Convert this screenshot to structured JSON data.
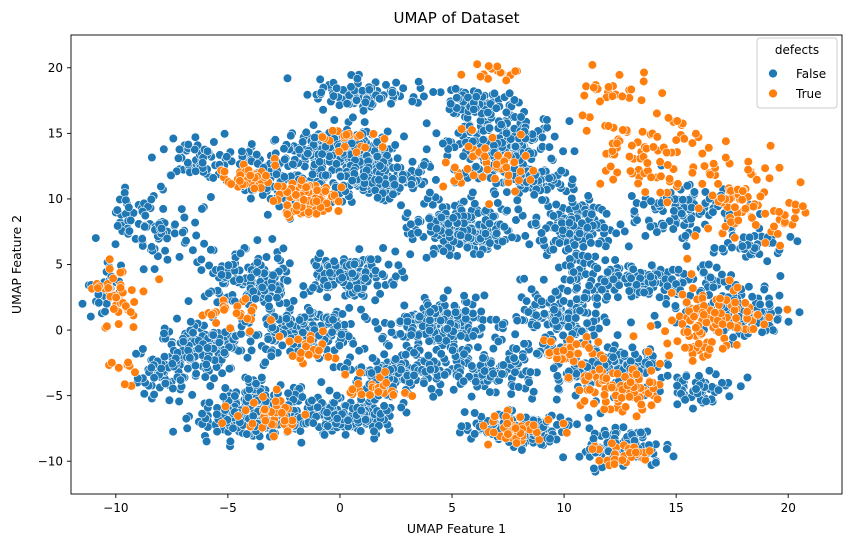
{
  "chart_data": {
    "type": "scatter",
    "title": "UMAP of Dataset",
    "xlabel": "UMAP Feature 1",
    "ylabel": "UMAP Feature 2",
    "xlim": [
      -12.0,
      22.4
    ],
    "ylim": [
      -12.5,
      22.5
    ],
    "xticks": [
      -10,
      -5,
      0,
      5,
      10,
      15,
      20
    ],
    "yticks": [
      -10,
      -5,
      0,
      5,
      10,
      15,
      20
    ],
    "grid": false,
    "legend": {
      "title": "defects",
      "placement": "top-right",
      "entries": [
        {
          "label": "False",
          "color": "#1f77b4"
        },
        {
          "label": "True",
          "color": "#ff7f0e"
        }
      ]
    },
    "series": [
      {
        "name": "False",
        "color": "#1f77b4",
        "clusters": [
          {
            "cx": 0.0,
            "cy": 13.8,
            "rx": 2.0,
            "ry": 1.3,
            "n": 220
          },
          {
            "cx": 7.2,
            "cy": 14.3,
            "rx": 2.0,
            "ry": 2.2,
            "n": 220
          },
          {
            "cx": 5.5,
            "cy": 7.8,
            "rx": 2.4,
            "ry": 1.8,
            "n": 240
          },
          {
            "cx": 0.5,
            "cy": 4.2,
            "rx": 1.7,
            "ry": 1.4,
            "n": 170
          },
          {
            "cx": -3.8,
            "cy": -6.2,
            "rx": 2.0,
            "ry": 1.8,
            "n": 260
          },
          {
            "cx": 0.3,
            "cy": -6.5,
            "rx": 1.8,
            "ry": 1.3,
            "n": 160
          },
          {
            "cx": 7.8,
            "cy": -7.5,
            "rx": 2.0,
            "ry": 1.2,
            "n": 160
          },
          {
            "cx": -1.5,
            "cy": 0.0,
            "rx": 2.3,
            "ry": 1.5,
            "n": 190
          },
          {
            "cx": 4.5,
            "cy": 0.5,
            "rx": 2.2,
            "ry": 1.8,
            "n": 200
          },
          {
            "cx": 10.5,
            "cy": 7.8,
            "rx": 1.4,
            "ry": 2.5,
            "n": 150
          },
          {
            "cx": 13.5,
            "cy": 3.8,
            "rx": 3.2,
            "ry": 1.3,
            "n": 170
          },
          {
            "cx": 17.5,
            "cy": 1.5,
            "rx": 2.2,
            "ry": 1.6,
            "n": 140
          },
          {
            "cx": -6.0,
            "cy": -1.5,
            "rx": 2.2,
            "ry": 2.0,
            "n": 150
          },
          {
            "cx": -4.0,
            "cy": 4.0,
            "rx": 1.8,
            "ry": 2.2,
            "n": 150
          },
          {
            "cx": 2.5,
            "cy": -3.5,
            "rx": 2.0,
            "ry": 1.5,
            "n": 150
          },
          {
            "cx": 12.0,
            "cy": -3.0,
            "rx": 2.5,
            "ry": 1.8,
            "n": 160
          },
          {
            "cx": 2.0,
            "cy": 11.5,
            "rx": 2.2,
            "ry": 1.3,
            "n": 150
          },
          {
            "cx": -2.5,
            "cy": 11.8,
            "rx": 2.3,
            "ry": 2.5,
            "n": 140
          },
          {
            "cx": 1.0,
            "cy": 18.0,
            "rx": 2.4,
            "ry": 1.2,
            "n": 90
          },
          {
            "cx": 10.0,
            "cy": 1.0,
            "rx": 2.0,
            "ry": 2.2,
            "n": 140
          },
          {
            "cx": 15.5,
            "cy": 9.0,
            "rx": 2.5,
            "ry": 2.0,
            "n": 110
          },
          {
            "cx": 12.5,
            "cy": -9.0,
            "rx": 1.8,
            "ry": 1.2,
            "n": 100
          },
          {
            "cx": -8.5,
            "cy": 8.0,
            "rx": 1.6,
            "ry": 2.5,
            "n": 90
          },
          {
            "cx": -8.0,
            "cy": -3.5,
            "rx": 1.2,
            "ry": 1.5,
            "n": 50
          },
          {
            "cx": -10.5,
            "cy": 3.0,
            "rx": 0.8,
            "ry": 1.5,
            "n": 30
          },
          {
            "cx": 6.5,
            "cy": -3.0,
            "rx": 2.0,
            "ry": 1.5,
            "n": 120
          },
          {
            "cx": 18.5,
            "cy": 6.5,
            "rx": 1.5,
            "ry": 0.8,
            "n": 40
          },
          {
            "cx": 16.0,
            "cy": -4.5,
            "rx": 1.5,
            "ry": 1.0,
            "n": 50
          },
          {
            "cx": 6.0,
            "cy": 17.5,
            "rx": 1.5,
            "ry": 1.0,
            "n": 60
          },
          {
            "cx": -6.5,
            "cy": 13.0,
            "rx": 1.5,
            "ry": 1.6,
            "n": 60
          },
          {
            "cx": 8.5,
            "cy": 11.5,
            "rx": 1.5,
            "ry": 1.0,
            "n": 80
          }
        ]
      },
      {
        "name": "True",
        "color": "#ff7f0e",
        "clusters": [
          {
            "cx": -1.5,
            "cy": 10.0,
            "rx": 1.2,
            "ry": 1.2,
            "n": 90
          },
          {
            "cx": 12.5,
            "cy": -4.5,
            "rx": 1.8,
            "ry": 1.6,
            "n": 80
          },
          {
            "cx": 17.0,
            "cy": 1.0,
            "rx": 2.3,
            "ry": 2.0,
            "n": 90
          },
          {
            "cx": -10.0,
            "cy": 2.5,
            "rx": 1.2,
            "ry": 2.8,
            "n": 40
          },
          {
            "cx": 17.5,
            "cy": 10.0,
            "rx": 1.8,
            "ry": 3.5,
            "n": 70
          },
          {
            "cx": 14.0,
            "cy": 13.5,
            "rx": 2.5,
            "ry": 3.0,
            "n": 80
          },
          {
            "cx": -4.0,
            "cy": 11.5,
            "rx": 1.2,
            "ry": 1.2,
            "n": 40
          },
          {
            "cx": 6.5,
            "cy": 12.5,
            "rx": 1.8,
            "ry": 2.0,
            "n": 45
          },
          {
            "cx": 8.0,
            "cy": -7.5,
            "rx": 1.8,
            "ry": 1.2,
            "n": 40
          },
          {
            "cx": -3.0,
            "cy": -6.5,
            "rx": 1.5,
            "ry": 1.5,
            "n": 35
          },
          {
            "cx": 1.5,
            "cy": -4.5,
            "rx": 1.5,
            "ry": 1.0,
            "n": 25
          },
          {
            "cx": 12.5,
            "cy": -9.5,
            "rx": 1.3,
            "ry": 1.0,
            "n": 30
          },
          {
            "cx": 12.0,
            "cy": 18.0,
            "rx": 1.5,
            "ry": 1.5,
            "n": 25
          },
          {
            "cx": 0.5,
            "cy": 14.5,
            "rx": 1.2,
            "ry": 1.0,
            "n": 20
          },
          {
            "cx": 20.0,
            "cy": 8.5,
            "rx": 0.8,
            "ry": 1.5,
            "n": 15
          },
          {
            "cx": 15.5,
            "cy": -1.5,
            "rx": 1.5,
            "ry": 1.0,
            "n": 25
          },
          {
            "cx": -9.5,
            "cy": -3.0,
            "rx": 1.2,
            "ry": 1.0,
            "n": 10
          },
          {
            "cx": 7.0,
            "cy": 19.8,
            "rx": 1.2,
            "ry": 0.8,
            "n": 15
          },
          {
            "cx": -4.5,
            "cy": 1.5,
            "rx": 1.5,
            "ry": 1.2,
            "n": 25
          },
          {
            "cx": -1.5,
            "cy": -1.5,
            "rx": 1.2,
            "ry": 1.0,
            "n": 20
          },
          {
            "cx": 10.5,
            "cy": -1.5,
            "rx": 1.5,
            "ry": 1.2,
            "n": 30
          }
        ]
      }
    ]
  }
}
